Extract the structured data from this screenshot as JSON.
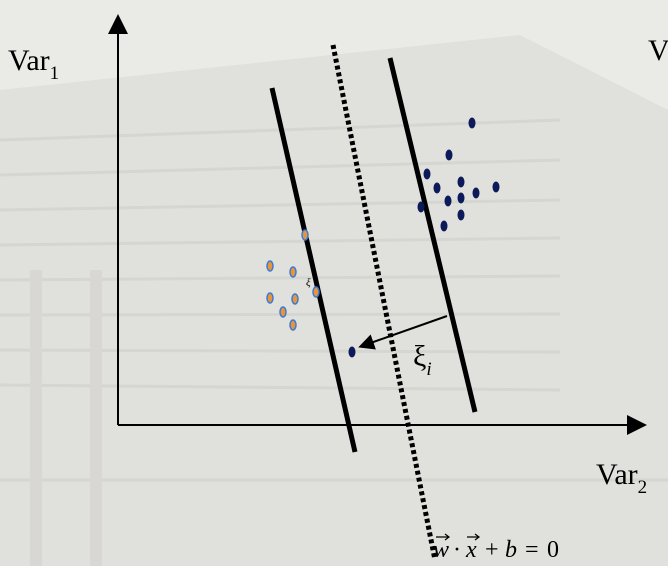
{
  "axis_labels": {
    "vertical": {
      "text": "Var",
      "subscript": "1"
    },
    "horizontal": {
      "text": "Var",
      "subscript": "2"
    }
  },
  "slack_label": {
    "text": "ξ",
    "subscript": "i"
  },
  "small_slack_label": "ξ",
  "equation": {
    "w": "w",
    "dot": "·",
    "x": "x",
    "plus": "+",
    "b": "b",
    "equals": "=",
    "zero": "0"
  },
  "cut_off_text": "V"
}
